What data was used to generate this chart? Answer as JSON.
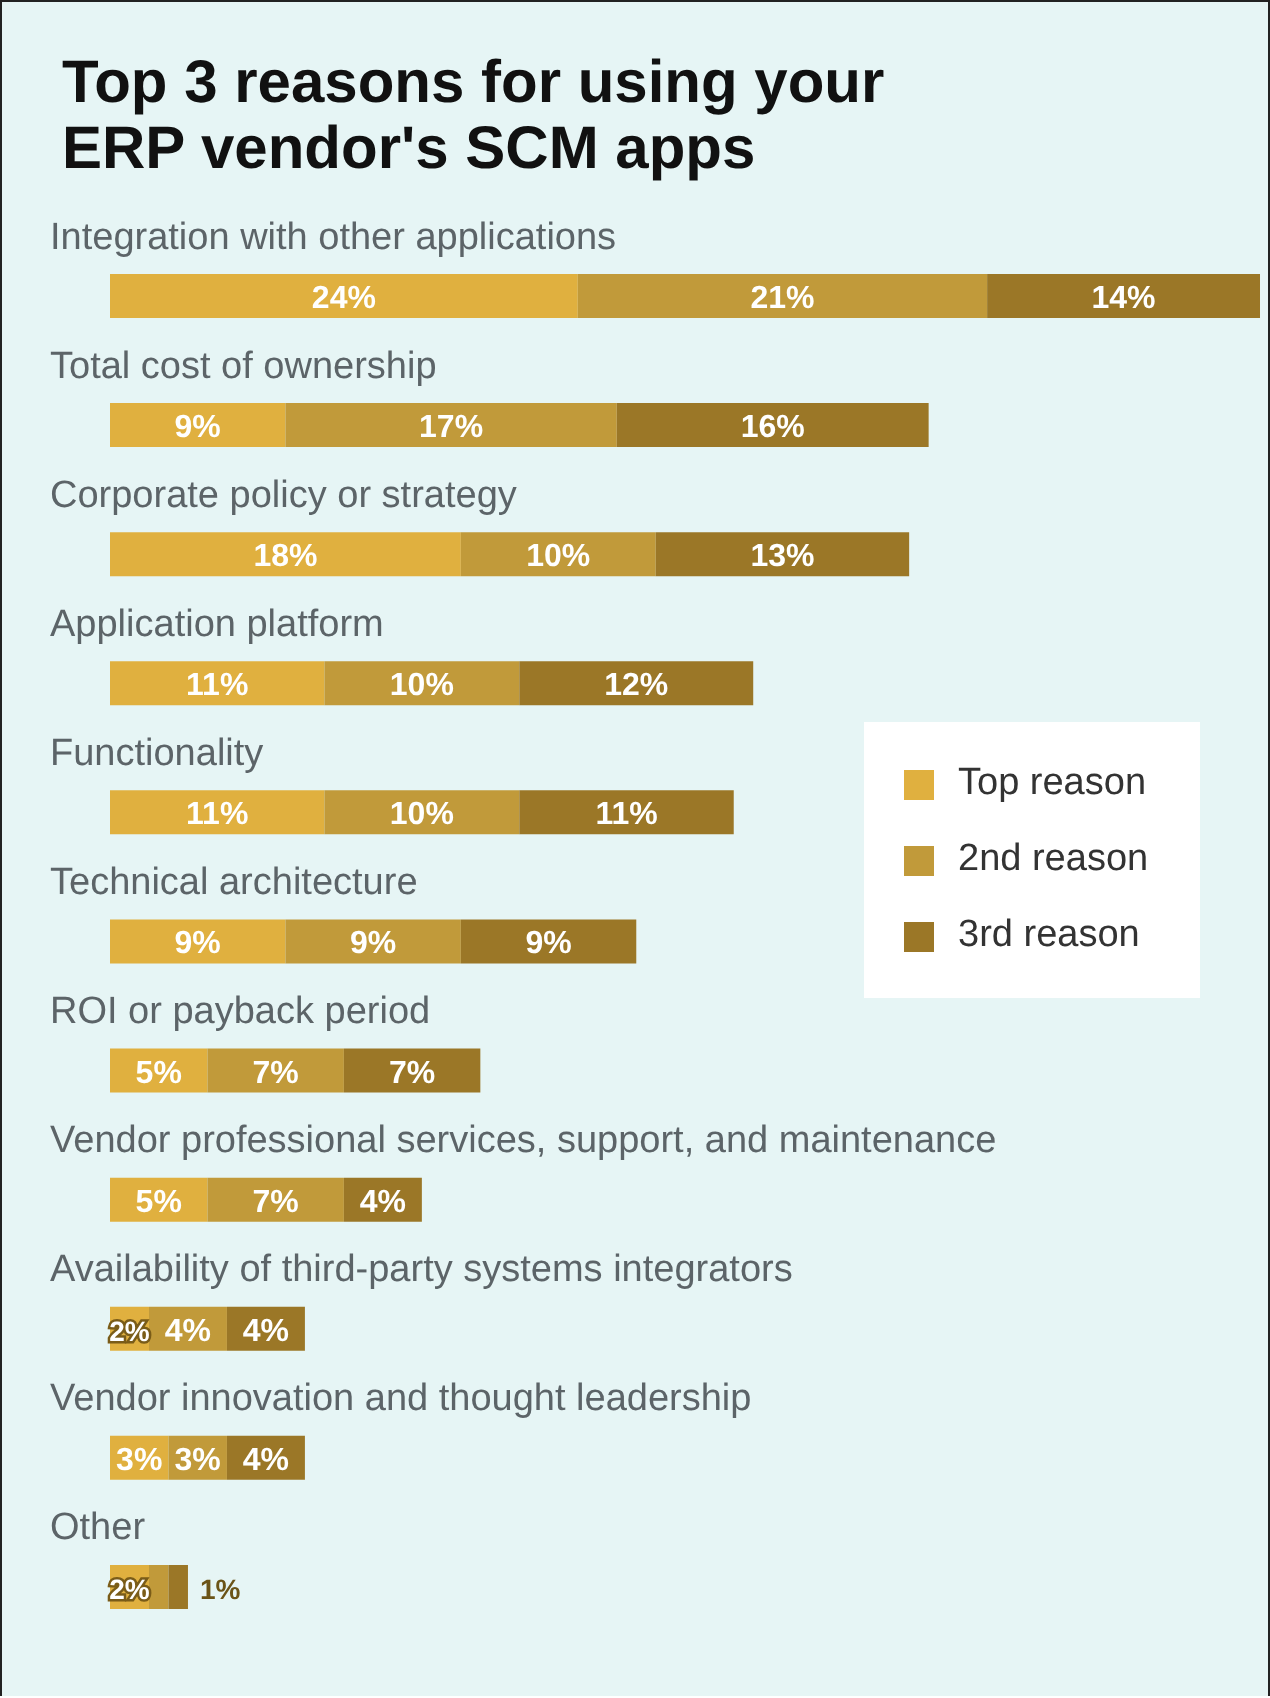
{
  "chart_data": {
    "type": "bar",
    "orientation": "horizontal",
    "stacked": true,
    "title": "Top 3 reasons for using your ERP vendor's SCM apps",
    "categories": [
      "Integration with other applications",
      "Total cost of ownership",
      "Corporate policy or strategy",
      "Application platform",
      "Functionality",
      "Technical architecture",
      "ROI or payback period",
      "Vendor professional services, support, and maintenance",
      "Availability of third-party systems integrators",
      "Vendor innovation and thought leadership",
      "Other"
    ],
    "series": [
      {
        "name": "Top reason",
        "color": "#e0b03f",
        "values": [
          24,
          9,
          18,
          11,
          11,
          9,
          5,
          5,
          2,
          3,
          2
        ],
        "value_labels": [
          "24%",
          "9%",
          "18%",
          "11%",
          "11%",
          "9%",
          "5%",
          "5%",
          "2%",
          "3%",
          "2%"
        ]
      },
      {
        "name": "2nd reason",
        "color": "#c19a3a",
        "values": [
          21,
          17,
          10,
          10,
          10,
          9,
          7,
          7,
          4,
          3,
          1
        ],
        "value_labels": [
          "21%",
          "17%",
          "10%",
          "10%",
          "10%",
          "9%",
          "7%",
          "7%",
          "4%",
          "3%",
          null
        ]
      },
      {
        "name": "3rd reason",
        "color": "#9b7727",
        "values": [
          14,
          16,
          13,
          12,
          11,
          9,
          7,
          4,
          4,
          4,
          1
        ],
        "value_labels": [
          "14%",
          "16%",
          "13%",
          "12%",
          "11%",
          "9%",
          "7%",
          "4%",
          "4%",
          "4%",
          "1%"
        ]
      }
    ],
    "legend": "right"
  }
}
